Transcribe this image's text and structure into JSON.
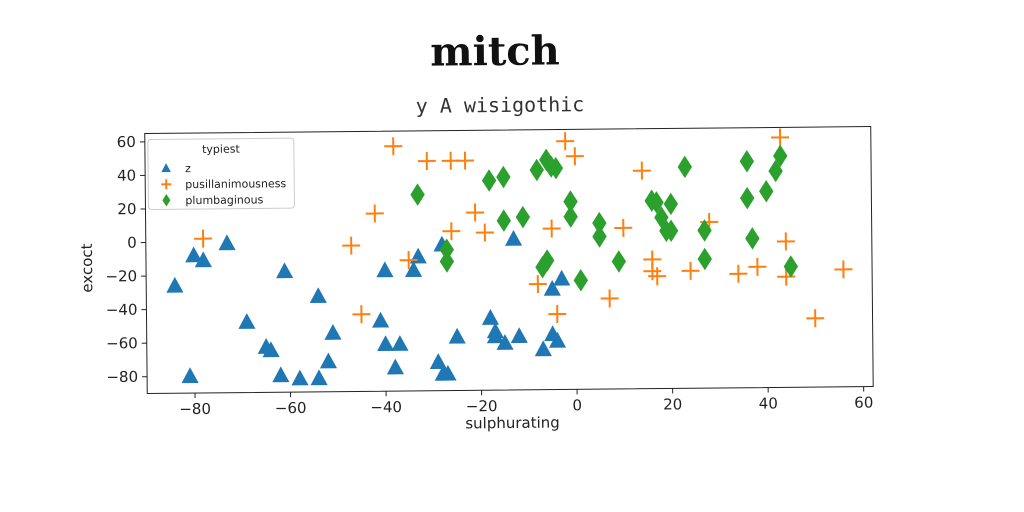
{
  "title": "mitch",
  "subtitle": "y A wisigothic",
  "chart_data": {
    "type": "scatter",
    "xlabel": "sulphurating",
    "ylabel": "excoct",
    "xlim": [
      -90,
      62
    ],
    "ylim": [
      -90,
      65
    ],
    "xticks": [
      -80,
      -60,
      -40,
      -20,
      0,
      20,
      40,
      60
    ],
    "xtick_labels": [
      "−80",
      "−60",
      "−40",
      "−20",
      "0",
      "20",
      "40",
      "60"
    ],
    "yticks": [
      60,
      40,
      20,
      0,
      -20,
      -40,
      -60,
      -80
    ],
    "ytick_labels": [
      "60",
      "40",
      "20",
      "0",
      "−20",
      "−40",
      "−60",
      "−80"
    ],
    "grid": false,
    "legend": {
      "title": "typiest",
      "location": "top-left",
      "entries": [
        "z",
        "pusillanimousness",
        "plumbaginous"
      ]
    },
    "series": [
      {
        "name": "z",
        "marker": "triangle",
        "color": "#1f77b4",
        "points": [
          [
            -84,
            -26
          ],
          [
            -80,
            -8
          ],
          [
            -78,
            -11
          ],
          [
            -73,
            -1
          ],
          [
            -81,
            -80
          ],
          [
            -69,
            -48
          ],
          [
            -65,
            -63
          ],
          [
            -64,
            -65
          ],
          [
            -62,
            -80
          ],
          [
            -61,
            -18
          ],
          [
            -58,
            -82
          ],
          [
            -54,
            -33
          ],
          [
            -54,
            -82
          ],
          [
            -51,
            -55
          ],
          [
            -52,
            -72
          ],
          [
            -41,
            -48
          ],
          [
            -40,
            -18
          ],
          [
            -40,
            -62
          ],
          [
            -38,
            -76
          ],
          [
            -37,
            -62
          ],
          [
            -34,
            -18
          ],
          [
            -33,
            -10
          ],
          [
            -29,
            -73
          ],
          [
            -28,
            -80
          ],
          [
            -28,
            -3
          ],
          [
            -27,
            -80
          ],
          [
            -25,
            -58
          ],
          [
            -18,
            -47
          ],
          [
            -17,
            -55
          ],
          [
            -17,
            -58
          ],
          [
            -15,
            -62
          ],
          [
            -12,
            -58
          ],
          [
            -13,
            0
          ],
          [
            -7,
            -66
          ],
          [
            -5,
            -30
          ],
          [
            -5,
            -57
          ],
          [
            -3,
            -24
          ],
          [
            -4,
            -61
          ]
        ]
      },
      {
        "name": "pusillanimousness",
        "marker": "plus",
        "color": "#ff7f0e",
        "points": [
          [
            -78,
            2
          ],
          [
            -38,
            56
          ],
          [
            -31,
            47
          ],
          [
            -26,
            47
          ],
          [
            -23,
            47
          ],
          [
            -42,
            16
          ],
          [
            -47,
            -3
          ],
          [
            -45,
            -44
          ],
          [
            -35,
            -12
          ],
          [
            -26,
            5
          ],
          [
            -21,
            16
          ],
          [
            -19,
            4
          ],
          [
            -5,
            6
          ],
          [
            -8,
            -27
          ],
          [
            -4,
            -45
          ],
          [
            -2,
            58
          ],
          [
            0,
            49
          ],
          [
            7,
            -36
          ],
          [
            10,
            6
          ],
          [
            14,
            40
          ],
          [
            16,
            -13
          ],
          [
            16,
            -20
          ],
          [
            17,
            -23
          ],
          [
            24,
            -20
          ],
          [
            28,
            9
          ],
          [
            34,
            -22
          ],
          [
            38,
            -18
          ],
          [
            43,
            59
          ],
          [
            44,
            -3
          ],
          [
            44,
            -24
          ],
          [
            50,
            -49
          ],
          [
            56,
            -20
          ]
        ]
      },
      {
        "name": "plumbaginous",
        "marker": "diamond",
        "color": "#2ca02c",
        "points": [
          [
            -33,
            27
          ],
          [
            -27,
            -6
          ],
          [
            -27,
            -13
          ],
          [
            -18,
            35
          ],
          [
            -15,
            37
          ],
          [
            -15,
            11
          ],
          [
            -11,
            13
          ],
          [
            -8,
            41
          ],
          [
            -6,
            47
          ],
          [
            -5,
            43
          ],
          [
            -4,
            42
          ],
          [
            -7,
            -17
          ],
          [
            -6,
            -13
          ],
          [
            -1,
            13
          ],
          [
            -1,
            22
          ],
          [
            1,
            -25
          ],
          [
            5,
            9
          ],
          [
            5,
            1
          ],
          [
            9,
            -14
          ],
          [
            16,
            22
          ],
          [
            17,
            21
          ],
          [
            19,
            4
          ],
          [
            18,
            12
          ],
          [
            20,
            20
          ],
          [
            20,
            4
          ],
          [
            23,
            42
          ],
          [
            27,
            4
          ],
          [
            27,
            -13
          ],
          [
            36,
            45
          ],
          [
            36,
            23
          ],
          [
            37,
            -1
          ],
          [
            40,
            27
          ],
          [
            42,
            39
          ],
          [
            43,
            48
          ],
          [
            45,
            -18
          ]
        ]
      }
    ]
  }
}
